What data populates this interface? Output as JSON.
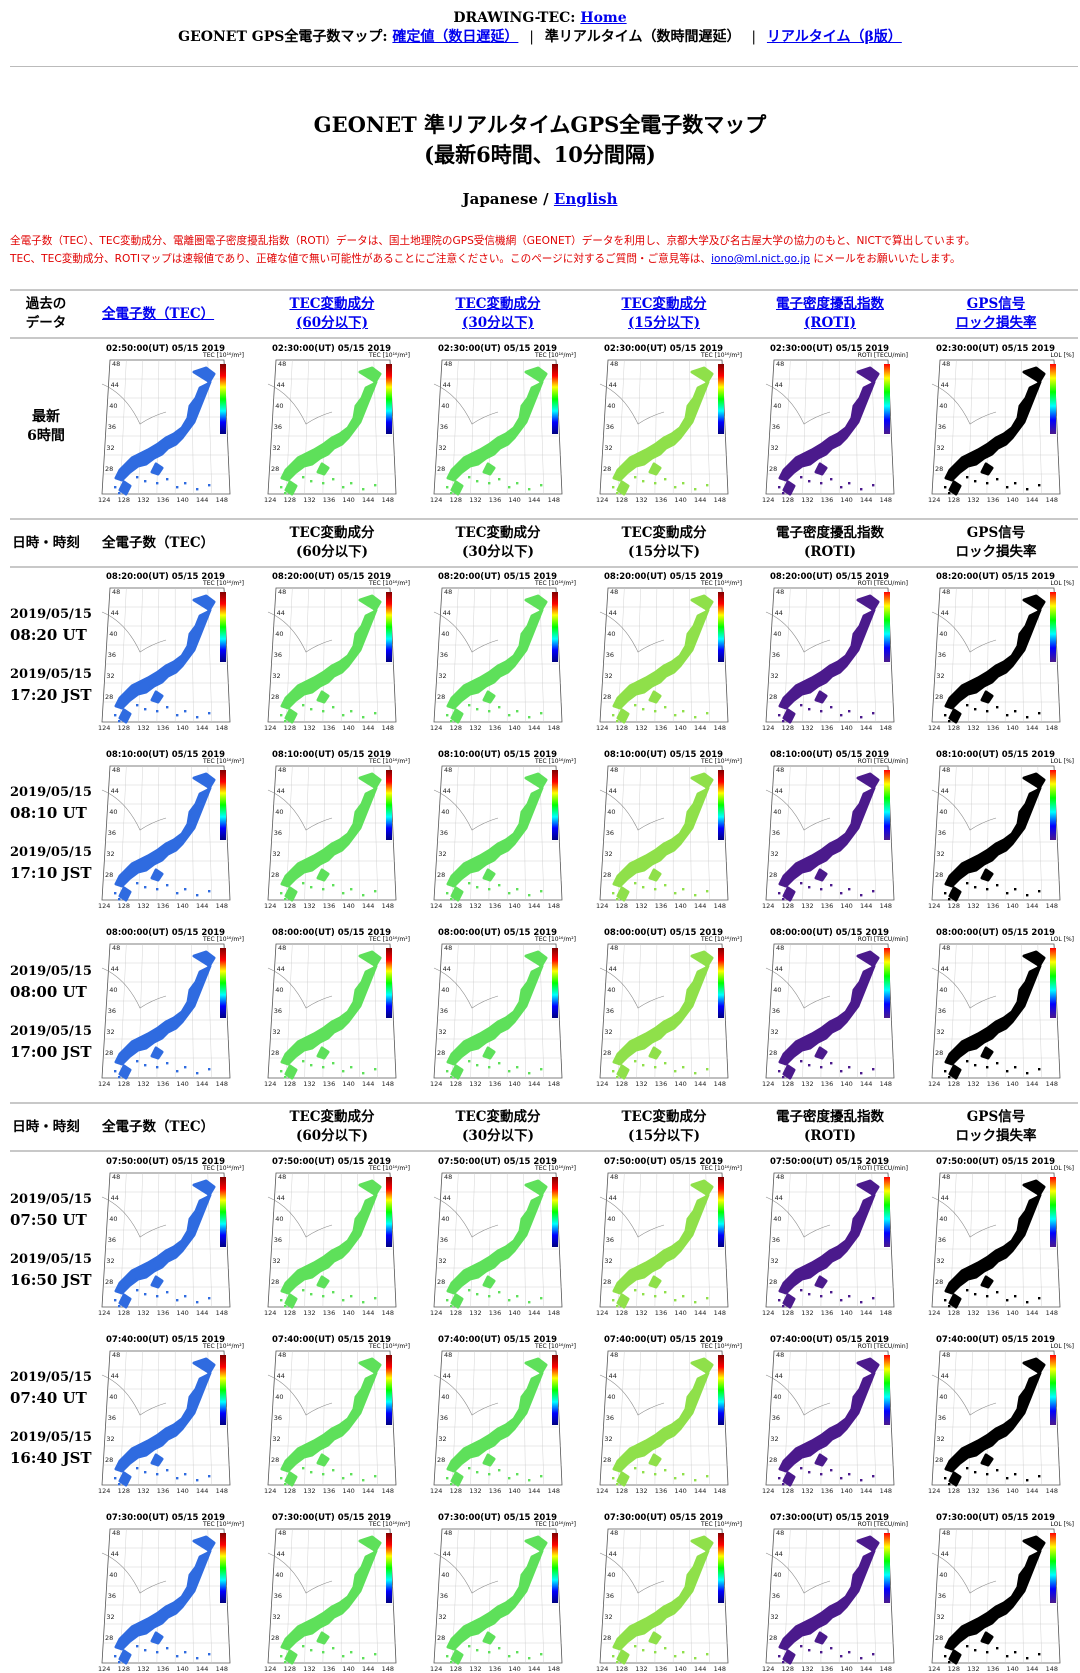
{
  "nav": {
    "site_label": "DRAWING-TEC:",
    "home_label": "Home",
    "map_label": "GEONET GPS全電子数マップ:",
    "final_label": "確定値（数日遅延）",
    "sep1": "|",
    "near_realtime_label": "準リアルタイム（数時間遅延）",
    "sep2": "|",
    "realtime_label": "リアルタイム（β版）"
  },
  "page": {
    "title_line1": "GEONET 準リアルタイムGPS全電子数マップ",
    "title_line2": "(最新6時間、10分間隔)",
    "lang_japanese": "Japanese /",
    "lang_english": "English",
    "note_line1": "全電子数（TEC）、TEC変動成分、電離圏電子密度擾乱指数（ROTI）データは、国土地理院のGPS受信機網（GEONET）データを利用し、京都大学及び名古屋大学の協力のもと、NICTで算出しています。",
    "note_line2a": "TEC、TEC変動成分、ROTIマップは速報値であり、正確な値で無い可能性があることにご注意ください。このページに対するご質問・ご意見等は、",
    "note_email": "iono@ml.nict.go.jp",
    "note_line2b": "にメールをお願いいたします。"
  },
  "link_header": {
    "col0_line1": "過去の",
    "col0_line2": "データ",
    "col1": "全電子数（TEC）",
    "col2_line1": "TEC変動成分",
    "col2_line2": "(60分以下)",
    "col3_line1": "TEC変動成分",
    "col3_line2": "(30分以下)",
    "col4_line1": "TEC変動成分",
    "col4_line2": "(15分以下)",
    "col5_line1": "電子密度擾乱指数",
    "col5_line2": "(ROTI)",
    "col6_line1": "GPS信号",
    "col6_line2": "ロック損失率"
  },
  "latest_row": {
    "label_line1": "最新",
    "label_line2": "6時間",
    "time": "02:50:00(UT) 05/15 2019",
    "time_others": "02:30:00(UT) 05/15 2019"
  },
  "plain_header": {
    "col0": "日時・時刻",
    "col1": "全電子数（TEC）",
    "col2_line1": "TEC変動成分",
    "col2_line2": "(60分以下)",
    "col3_line1": "TEC変動成分",
    "col3_line2": "(30分以下)",
    "col4_line1": "TEC変動成分",
    "col4_line2": "(15分以下)",
    "col5_line1": "電子密度擾乱指数",
    "col5_line2": "(ROTI)",
    "col6_line1": "GPS信号",
    "col6_line2": "ロック損失率"
  },
  "map_units": {
    "tec": "TEC [10¹⁶/m²]",
    "dtec": "TEC [10¹⁶/m²]",
    "roti": "ROTI [TECU/min]",
    "lol": "LOL [%]"
  },
  "axis_ticks": {
    "lat": [
      "48",
      "44",
      "40",
      "36",
      "32",
      "28",
      "24"
    ],
    "lon": [
      "124",
      "128",
      "132",
      "136",
      "140",
      "144",
      "148"
    ]
  },
  "rows": [
    {
      "ut_date": "2019/05/15",
      "ut_time": "08:20 UT",
      "jst_date": "2019/05/15",
      "jst_time": "17:20 JST",
      "map_time": "08:20:00(UT) 05/15 2019"
    },
    {
      "ut_date": "2019/05/15",
      "ut_time": "08:10 UT",
      "jst_date": "2019/05/15",
      "jst_time": "17:10 JST",
      "map_time": "08:10:00(UT) 05/15 2019"
    },
    {
      "ut_date": "2019/05/15",
      "ut_time": "08:00 UT",
      "jst_date": "2019/05/15",
      "jst_time": "17:00 JST",
      "map_time": "08:00:00(UT) 05/15 2019"
    },
    {
      "ut_date": "2019/05/15",
      "ut_time": "07:50 UT",
      "jst_date": "2019/05/15",
      "jst_time": "16:50 JST",
      "map_time": "07:50:00(UT) 05/15 2019"
    },
    {
      "ut_date": "2019/05/15",
      "ut_time": "07:40 UT",
      "jst_date": "2019/05/15",
      "jst_time": "16:40 JST",
      "map_time": "07:40:00(UT) 05/15 2019"
    },
    {
      "map_time": "07:30:00(UT) 05/15 2019"
    }
  ],
  "colors": {
    "link": "#0000ee",
    "note_red": "#e00000",
    "tec_fill": "#2f6be0",
    "dtec_fill": "#5ee05a",
    "roti_fill": "#4b1a8c",
    "lol_fill": "#000000"
  }
}
